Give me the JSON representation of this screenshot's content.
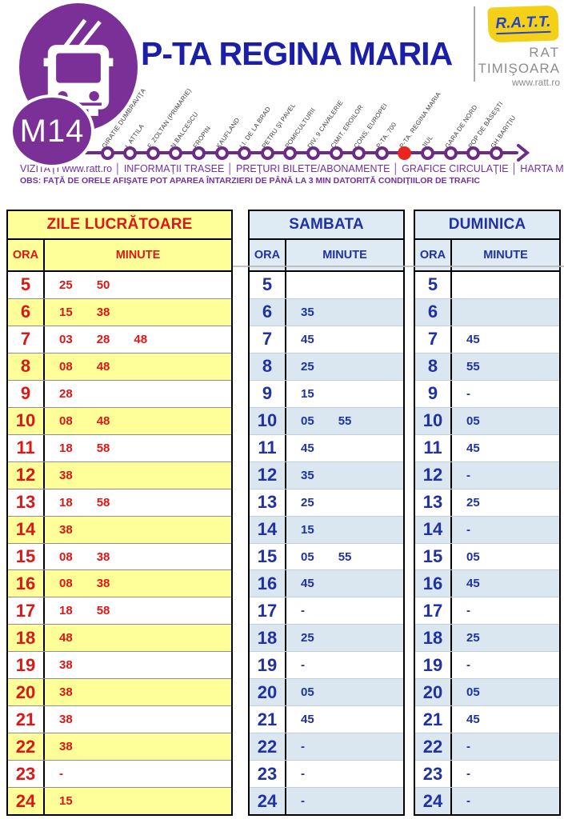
{
  "header": {
    "route_badge": "M14",
    "title": "P-TA REGINA MARIA",
    "logo": {
      "brand": "R.A.T.T.",
      "line1": "RAT",
      "line2": "TIMIŞOARA",
      "website": "www.ratt.ro"
    }
  },
  "route": {
    "stops": [
      {
        "name": "GIRATIE DUMBRAVIŢA",
        "current": false
      },
      {
        "name": "I. ATTILA",
        "current": false
      },
      {
        "name": "F. ZOLTAN (PRIMARIE)",
        "current": false
      },
      {
        "name": "N.BALCESCU",
        "current": false
      },
      {
        "name": "FROPIN",
        "current": false
      },
      {
        "name": "KAUFLAND",
        "current": false
      },
      {
        "name": "I.I. DE LA BRAD",
        "current": false
      },
      {
        "name": "PETRU ŞI PAVEL",
        "current": false
      },
      {
        "name": "POMICULTURII",
        "current": false
      },
      {
        "name": "DIV. 9 CAVALERIE",
        "current": false
      },
      {
        "name": "CIMIT. EROILOR",
        "current": false
      },
      {
        "name": "CONS. EUROPEI",
        "current": false
      },
      {
        "name": "P-TA. 700",
        "current": false
      },
      {
        "name": "P-TA. REGINA MARIA",
        "current": true
      },
      {
        "name": "JIUL",
        "current": false
      },
      {
        "name": "GARA DE NORD",
        "current": false
      },
      {
        "name": "POP DE BĂSEŞTI",
        "current": false
      },
      {
        "name": "GH.BARIŢIU",
        "current": false
      }
    ]
  },
  "nav_links": "VIZITAŢI www.ratt.ro │ INFORMAŢII TRASEE │ PREŢURI BILETE/ABONAMENTE │ GRAFICE CIRCULAŢIE │ HARTA MTC   FORUM │",
  "obs_note": "OBS: FAŢĂ DE ORELE AFIŞATE POT APAREA ÎNTARZIERI DE PÂNĂ LA 3 MIN DATORITĂ CONDIŢIILOR DE TRAFIC",
  "colors": {
    "purple": "#7A3097",
    "route_line_purple": "#6B2C85",
    "links_purple": "#7030A0",
    "title_blue": "#1B1FA8",
    "table_red": "#E01515",
    "table_blue": "#1F31A3",
    "yellow": "#FFFF99",
    "light_blue": "#DEEBF4",
    "current_stop_red": "#E8261D",
    "logo_yellow": "#F5D018"
  },
  "tables": [
    {
      "id": "weekday",
      "title": "ZILE LUCRĂTOARE",
      "ora_label": "ORA",
      "minute_label": "MINUTE",
      "rows": [
        {
          "hour": "5",
          "minutes": [
            "25",
            "50"
          ]
        },
        {
          "hour": "6",
          "minutes": [
            "15",
            "38"
          ]
        },
        {
          "hour": "7",
          "minutes": [
            "03",
            "28",
            "48"
          ]
        },
        {
          "hour": "8",
          "minutes": [
            "08",
            "48"
          ]
        },
        {
          "hour": "9",
          "minutes": [
            "28"
          ]
        },
        {
          "hour": "10",
          "minutes": [
            "08",
            "48"
          ]
        },
        {
          "hour": "11",
          "minutes": [
            "18",
            "58"
          ]
        },
        {
          "hour": "12",
          "minutes": [
            "38"
          ]
        },
        {
          "hour": "13",
          "minutes": [
            "18",
            "58"
          ]
        },
        {
          "hour": "14",
          "minutes": [
            "38"
          ]
        },
        {
          "hour": "15",
          "minutes": [
            "08",
            "38"
          ]
        },
        {
          "hour": "16",
          "minutes": [
            "08",
            "38"
          ]
        },
        {
          "hour": "17",
          "minutes": [
            "18",
            "58"
          ]
        },
        {
          "hour": "18",
          "minutes": [
            "48"
          ]
        },
        {
          "hour": "19",
          "minutes": [
            "38"
          ]
        },
        {
          "hour": "20",
          "minutes": [
            "38"
          ]
        },
        {
          "hour": "21",
          "minutes": [
            "38"
          ]
        },
        {
          "hour": "22",
          "minutes": [
            "38"
          ]
        },
        {
          "hour": "23",
          "minutes": [
            "-"
          ]
        },
        {
          "hour": "24",
          "minutes": [
            "15"
          ]
        }
      ]
    },
    {
      "id": "saturday",
      "title": "SAMBATA",
      "ora_label": "ORA",
      "minute_label": "MINUTE",
      "rows": [
        {
          "hour": "5",
          "minutes": []
        },
        {
          "hour": "6",
          "minutes": [
            "35"
          ]
        },
        {
          "hour": "7",
          "minutes": [
            "45"
          ]
        },
        {
          "hour": "8",
          "minutes": [
            "25"
          ]
        },
        {
          "hour": "9",
          "minutes": [
            "15"
          ]
        },
        {
          "hour": "10",
          "minutes": [
            "05",
            "55"
          ]
        },
        {
          "hour": "11",
          "minutes": [
            "45"
          ]
        },
        {
          "hour": "12",
          "minutes": [
            "35"
          ]
        },
        {
          "hour": "13",
          "minutes": [
            "25"
          ]
        },
        {
          "hour": "14",
          "minutes": [
            "15"
          ]
        },
        {
          "hour": "15",
          "minutes": [
            "05",
            "55"
          ]
        },
        {
          "hour": "16",
          "minutes": [
            "45"
          ]
        },
        {
          "hour": "17",
          "minutes": [
            "-"
          ]
        },
        {
          "hour": "18",
          "minutes": [
            "25"
          ]
        },
        {
          "hour": "19",
          "minutes": [
            "-"
          ]
        },
        {
          "hour": "20",
          "minutes": [
            "05"
          ]
        },
        {
          "hour": "21",
          "minutes": [
            "45"
          ]
        },
        {
          "hour": "22",
          "minutes": [
            "-"
          ]
        },
        {
          "hour": "23",
          "minutes": [
            "-"
          ]
        },
        {
          "hour": "24",
          "minutes": [
            "-"
          ]
        }
      ]
    },
    {
      "id": "sunday",
      "title": "DUMINICA",
      "ora_label": "ORA",
      "minute_label": "MINUTE",
      "rows": [
        {
          "hour": "5",
          "minutes": []
        },
        {
          "hour": "6",
          "minutes": []
        },
        {
          "hour": "7",
          "minutes": [
            "45"
          ]
        },
        {
          "hour": "8",
          "minutes": [
            "55"
          ]
        },
        {
          "hour": "9",
          "minutes": [
            "-"
          ]
        },
        {
          "hour": "10",
          "minutes": [
            "05"
          ]
        },
        {
          "hour": "11",
          "minutes": [
            "45"
          ]
        },
        {
          "hour": "12",
          "minutes": [
            "-"
          ]
        },
        {
          "hour": "13",
          "minutes": [
            "25"
          ]
        },
        {
          "hour": "14",
          "minutes": [
            "-"
          ]
        },
        {
          "hour": "15",
          "minutes": [
            "05"
          ]
        },
        {
          "hour": "16",
          "minutes": [
            "45"
          ]
        },
        {
          "hour": "17",
          "minutes": [
            "-"
          ]
        },
        {
          "hour": "18",
          "minutes": [
            "25"
          ]
        },
        {
          "hour": "19",
          "minutes": [
            "-"
          ]
        },
        {
          "hour": "20",
          "minutes": [
            "05"
          ]
        },
        {
          "hour": "21",
          "minutes": [
            "45"
          ]
        },
        {
          "hour": "22",
          "minutes": [
            "-"
          ]
        },
        {
          "hour": "23",
          "minutes": [
            "-"
          ]
        },
        {
          "hour": "24",
          "minutes": [
            "-"
          ]
        }
      ]
    }
  ]
}
